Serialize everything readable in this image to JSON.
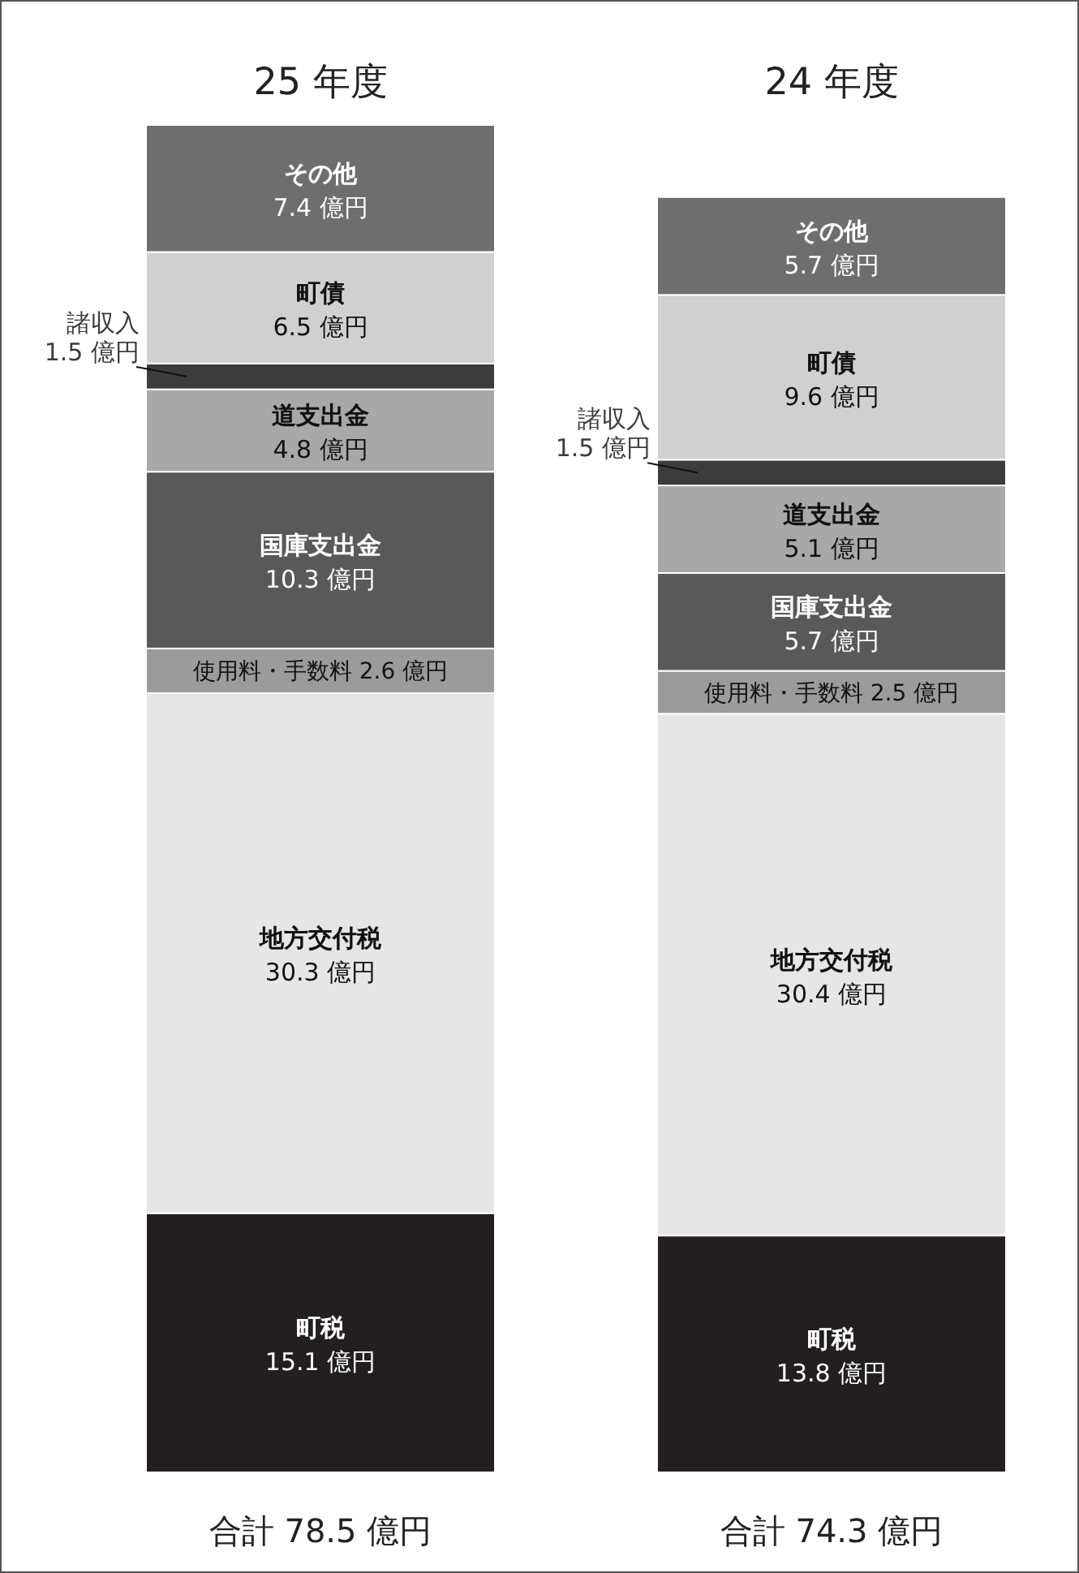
{
  "chart_data": {
    "type": "bar",
    "stacked": true,
    "categories": [
      "25 年度",
      "24 年度"
    ],
    "series": [
      {
        "name": "町税",
        "color": "#231f20",
        "values": [
          15.1,
          13.8
        ],
        "value_labels": [
          "15.1 億円",
          "13.8 億円"
        ]
      },
      {
        "name": "地方交付税",
        "color": "#e6e6e6",
        "values": [
          30.3,
          30.4
        ],
        "value_labels": [
          "30.3 億円",
          "30.4 億円"
        ]
      },
      {
        "name": "使用料・手数料",
        "color": "#9b9b9b",
        "values": [
          2.6,
          2.5
        ],
        "value_labels": [
          "2.6 億円",
          "2.5 億円"
        ]
      },
      {
        "name": "国庫支出金",
        "color": "#595959",
        "values": [
          10.3,
          5.7
        ],
        "value_labels": [
          "10.3 億円",
          "5.7 億円"
        ]
      },
      {
        "name": "道支出金",
        "color": "#a8a8a8",
        "values": [
          4.8,
          5.1
        ],
        "value_labels": [
          "4.8 億円",
          "5.1 億円"
        ]
      },
      {
        "name": "諸収入",
        "color": "#3c3c3c",
        "values": [
          1.5,
          1.5
        ],
        "value_labels": [
          "1.5 億円",
          "1.5 億円"
        ]
      },
      {
        "name": "町債",
        "color": "#d0d0d0",
        "values": [
          6.5,
          9.6
        ],
        "value_labels": [
          "6.5 億円",
          "9.6 億円"
        ]
      },
      {
        "name": "その他",
        "color": "#6e6e6e",
        "values": [
          7.4,
          5.7
        ],
        "value_labels": [
          "7.4 億円",
          "5.7 億円"
        ]
      }
    ],
    "totals": [
      "合計 78.5 億円",
      "合計 74.3 億円"
    ]
  }
}
